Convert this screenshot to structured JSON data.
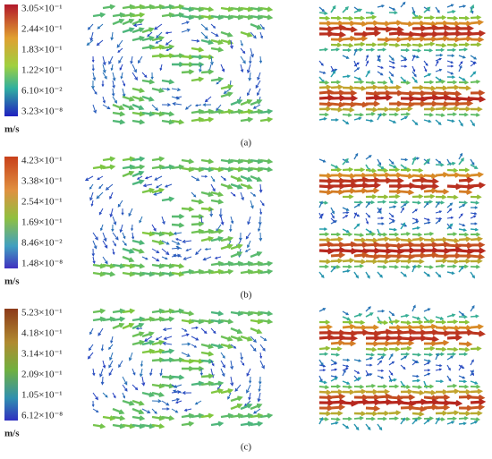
{
  "rows": [
    {
      "caption": "(a)",
      "colorbar": {
        "labels": [
          "3.05×10⁻¹",
          "2.44×10⁻¹",
          "1.83×10⁻¹",
          "1.22×10⁻¹",
          "6.10×10⁻²",
          "3.23×10⁻⁸"
        ],
        "unit": "m/s"
      }
    },
    {
      "caption": "(b)",
      "colorbar": {
        "labels": [
          "4.23×10⁻¹",
          "3.38×10⁻¹",
          "2.54×10⁻¹",
          "1.69×10⁻¹",
          "8.46×10⁻²",
          "1.48×10⁻⁸"
        ],
        "unit": "m/s"
      }
    },
    {
      "caption": "(c)",
      "colorbar": {
        "labels": [
          "5.23×10⁻¹",
          "4.18×10⁻¹",
          "3.14×10⁻¹",
          "2.09×10⁻¹",
          "1.05×10⁻¹",
          "6.12×10⁻⁸"
        ],
        "unit": "m/s"
      }
    }
  ]
}
